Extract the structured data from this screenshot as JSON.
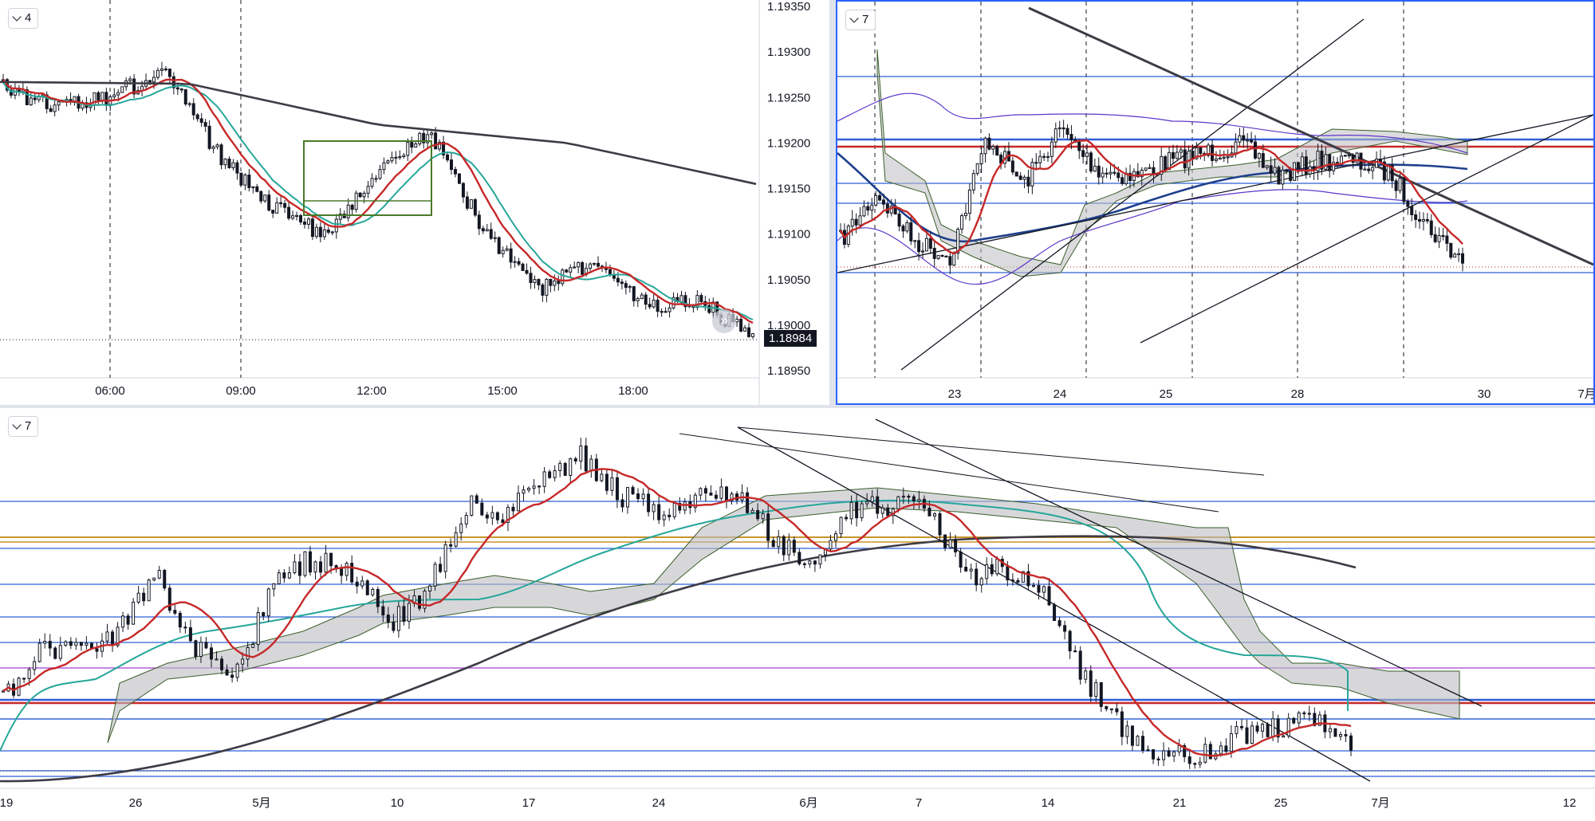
{
  "colors": {
    "bg": "#ffffff",
    "axis_text": "#131722",
    "ema": "#c62828",
    "kijun": "#26a69a",
    "sma_long": "#3d3b45",
    "cloud": "#bdbdc1",
    "cloud_edge": "#3b5e2b",
    "hline_blue": "#2f5fd8",
    "hline_red": "#c62828",
    "hline_orange": "#c8942c",
    "hline_purple": "#b05fd8",
    "bb": "#5b36c9",
    "ma_blue": "#1e3f8c",
    "box_green": "#4a7a2a",
    "active_border": "#2962ff"
  },
  "panes": [
    {
      "id": "top-left",
      "badge_label": "4",
      "price_label": "1.18984",
      "more_icon": "double-chevron-right-icon",
      "chart_data": {
        "type": "candlestick",
        "x_labels": [
          "06:00",
          "09:00",
          "12:00",
          "15:00",
          "18:00"
        ],
        "y_ticks": [
          "1.19350",
          "1.19300",
          "1.19250",
          "1.19200",
          "1.19150",
          "1.19100",
          "1.19050",
          "1.19000",
          "1.18950"
        ],
        "ylim": [
          1.1895,
          1.1935
        ],
        "last_price": 1.18984,
        "indicators": [
          "ema",
          "kijun",
          "sma_long"
        ],
        "annotations": [
          "rectangle"
        ]
      }
    },
    {
      "id": "top-right",
      "badge_label": "7",
      "chart_data": {
        "type": "candlestick",
        "x_labels": [
          "23",
          "24",
          "25",
          "28",
          "30",
          "7月"
        ],
        "indicators": [
          "ema",
          "ichimoku_cloud",
          "bollinger_bands",
          "moving_average"
        ],
        "annotations": [
          "horizontal_lines",
          "trend_lines"
        ]
      }
    },
    {
      "id": "bottom",
      "badge_label": "7",
      "chart_data": {
        "type": "candlestick",
        "x_labels": [
          "19",
          "26",
          "5月",
          "10",
          "17",
          "24",
          "6月",
          "7",
          "14",
          "21",
          "25",
          "7月",
          "12"
        ],
        "indicators": [
          "ema",
          "kijun",
          "ichimoku_cloud",
          "sma_long"
        ],
        "annotations": [
          "horizontal_lines",
          "trend_lines"
        ]
      }
    }
  ]
}
